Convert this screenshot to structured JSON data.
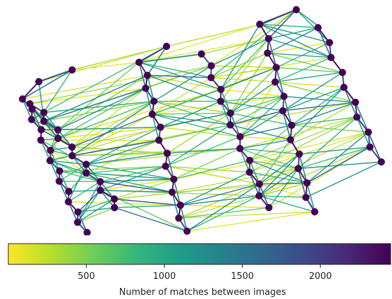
{
  "colorbar": {
    "label": "Number of matches between images",
    "ticks": [
      "500",
      "1000",
      "1500",
      "2000"
    ],
    "tick_values": [
      500,
      1000,
      1500,
      2000
    ],
    "range": [
      0,
      2450
    ],
    "colormap": [
      "#fde725",
      "#b5de2b",
      "#6ece58",
      "#35b779",
      "#1f9e89",
      "#26828e",
      "#31688e",
      "#3e4989",
      "#482878",
      "#440154"
    ]
  },
  "graph": {
    "node_color": "#440154",
    "node_count": 84
  }
}
